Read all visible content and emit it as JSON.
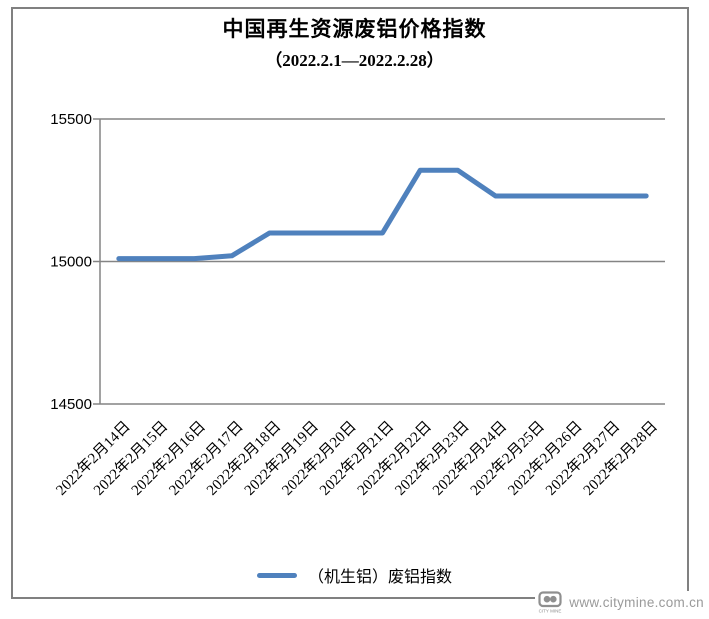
{
  "chart": {
    "title": "中国再生资源废铝价格指数",
    "subtitle": "（2022.2.1—2022.2.28）"
  },
  "chart_data": {
    "type": "line",
    "title": "中国再生资源废铝价格指数",
    "subtitle": "（2022.2.1—2022.2.28）",
    "categories": [
      "2022年2月14日",
      "2022年2月15日",
      "2022年2月16日",
      "2022年2月17日",
      "2022年2月18日",
      "2022年2月19日",
      "2022年2月20日",
      "2022年2月21日",
      "2022年2月22日",
      "2022年2月23日",
      "2022年2月24日",
      "2022年2月25日",
      "2022年2月26日",
      "2022年2月27日",
      "2022年2月28日"
    ],
    "series": [
      {
        "name": "（机生铝）废铝指数",
        "color": "#4F81BD",
        "values": [
          15010,
          15010,
          15010,
          15020,
          15100,
          15100,
          15100,
          15100,
          15320,
          15320,
          15230,
          15230,
          15230,
          15230,
          15230
        ]
      }
    ],
    "ylim": [
      14500,
      15500
    ],
    "yticks": [
      14500,
      15000,
      15500
    ],
    "grid": "horizontal-major",
    "legend_position": "bottom",
    "axis_color": "#848484",
    "x_tick_rotation": -45
  },
  "legend": {
    "label": "（机生铝）废铝指数"
  },
  "watermark": {
    "site": "www.citymine.com.cn",
    "logo_caption": "CITY MINE"
  }
}
